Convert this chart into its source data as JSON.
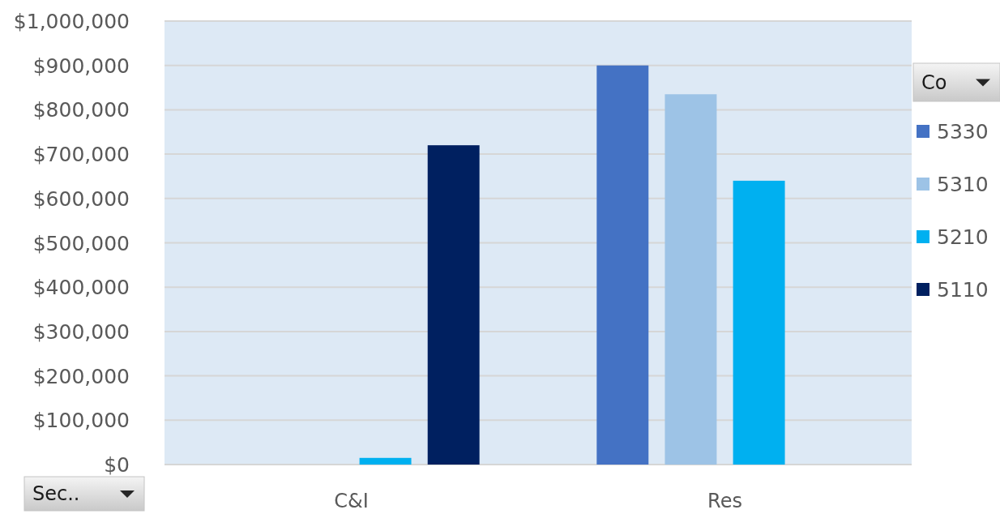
{
  "chart_data": {
    "type": "bar",
    "xlabel": "Sec..",
    "legend_title": "Co",
    "categories": [
      "C&I",
      "Res"
    ],
    "series": [
      {
        "name": "5330",
        "color": "#4472c4",
        "values": [
          null,
          900000
        ]
      },
      {
        "name": "5310",
        "color": "#9dc3e6",
        "values": [
          null,
          835000
        ]
      },
      {
        "name": "5210",
        "color": "#00b0f0",
        "values": [
          15000,
          640000
        ]
      },
      {
        "name": "5110",
        "color": "#002060",
        "values": [
          720000,
          null
        ]
      }
    ],
    "ylim": [
      0,
      1000000
    ],
    "yticks": [
      {
        "value": 0,
        "label": "$0"
      },
      {
        "value": 100000,
        "label": "$100,000"
      },
      {
        "value": 200000,
        "label": "$200,000"
      },
      {
        "value": 300000,
        "label": "$300,000"
      },
      {
        "value": 400000,
        "label": "$400,000"
      },
      {
        "value": 500000,
        "label": "$500,000"
      },
      {
        "value": 600000,
        "label": "$600,000"
      },
      {
        "value": 700000,
        "label": "$700,000"
      },
      {
        "value": 800000,
        "label": "$800,000"
      },
      {
        "value": 900000,
        "label": "$900,000"
      },
      {
        "value": 1000000,
        "label": "$1,000,000"
      }
    ],
    "grid": "y",
    "legend": "right"
  }
}
